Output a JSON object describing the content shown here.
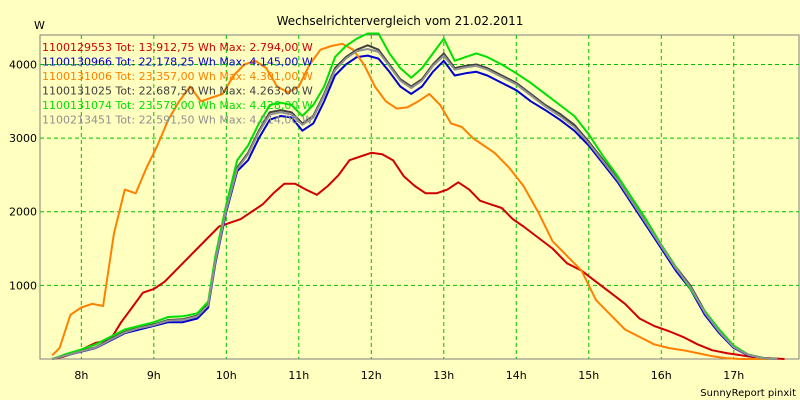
{
  "chart_data": {
    "type": "line",
    "title": "Wechselrichtervergleich vom 21.02.2011",
    "ylabel": "W",
    "xlabel": "",
    "ylim": [
      0,
      4400
    ],
    "xlim": [
      7.43,
      17.9
    ],
    "yticks": [
      1000,
      2000,
      3000,
      4000
    ],
    "xticks": [
      8,
      9,
      10,
      11,
      12,
      13,
      14,
      15,
      16,
      17
    ],
    "xtick_labels": [
      "8h",
      "9h",
      "10h",
      "11h",
      "12h",
      "13h",
      "14h",
      "15h",
      "16h",
      "17h"
    ],
    "legend_position": "top-left",
    "grid": true,
    "footer": "SunnyReport pinxit",
    "series": [
      {
        "name": "1100129553 Tot: 13.912,75 Wh Max: 2.794,00 W",
        "color": "#d00000",
        "x": [
          7.6,
          7.75,
          7.9,
          8.05,
          8.2,
          8.4,
          8.55,
          8.7,
          8.85,
          9.0,
          9.15,
          9.3,
          9.45,
          9.6,
          9.75,
          9.9,
          10.05,
          10.2,
          10.35,
          10.5,
          10.65,
          10.8,
          10.95,
          11.1,
          11.25,
          11.4,
          11.55,
          11.7,
          11.85,
          12.0,
          12.15,
          12.3,
          12.45,
          12.6,
          12.75,
          12.9,
          13.05,
          13.2,
          13.35,
          13.5,
          13.65,
          13.8,
          13.95,
          14.1,
          14.3,
          14.5,
          14.7,
          14.9,
          15.1,
          15.3,
          15.5,
          15.7,
          15.9,
          16.1,
          16.3,
          16.5,
          16.7,
          16.9,
          17.1,
          17.3,
          17.5,
          17.7
        ],
        "y": [
          0,
          30,
          80,
          150,
          220,
          260,
          500,
          700,
          900,
          950,
          1050,
          1200,
          1350,
          1500,
          1650,
          1800,
          1850,
          1900,
          2000,
          2100,
          2250,
          2380,
          2380,
          2300,
          2230,
          2350,
          2500,
          2700,
          2750,
          2800,
          2780,
          2700,
          2480,
          2350,
          2250,
          2250,
          2300,
          2400,
          2300,
          2150,
          2100,
          2050,
          1900,
          1800,
          1650,
          1500,
          1300,
          1200,
          1050,
          900,
          750,
          550,
          450,
          380,
          300,
          200,
          120,
          80,
          50,
          20,
          10,
          0
        ]
      },
      {
        "name": "1100130966 Tot: 22.178,25 Wh Max: 4.145,00 W",
        "color": "#0000d0",
        "x": [
          7.6,
          7.8,
          8.0,
          8.2,
          8.4,
          8.6,
          8.8,
          9.0,
          9.2,
          9.4,
          9.6,
          9.75,
          9.85,
          10.0,
          10.15,
          10.3,
          10.45,
          10.6,
          10.75,
          10.9,
          11.05,
          11.2,
          11.35,
          11.5,
          11.65,
          11.8,
          11.95,
          12.1,
          12.25,
          12.4,
          12.55,
          12.7,
          12.85,
          13.0,
          13.15,
          13.3,
          13.45,
          13.6,
          13.8,
          14.0,
          14.2,
          14.4,
          14.6,
          14.8,
          15.0,
          15.2,
          15.4,
          15.6,
          15.8,
          16.0,
          16.2,
          16.4,
          16.6,
          16.8,
          17.0,
          17.2,
          17.4,
          17.6
        ],
        "y": [
          0,
          50,
          100,
          150,
          250,
          350,
          400,
          450,
          500,
          500,
          550,
          700,
          1300,
          2000,
          2550,
          2700,
          3000,
          3250,
          3300,
          3280,
          3100,
          3200,
          3500,
          3850,
          4000,
          4100,
          4120,
          4080,
          3900,
          3700,
          3600,
          3700,
          3900,
          4050,
          3850,
          3880,
          3900,
          3850,
          3750,
          3650,
          3500,
          3380,
          3250,
          3100,
          2900,
          2650,
          2400,
          2100,
          1800,
          1500,
          1200,
          950,
          600,
          350,
          150,
          50,
          10,
          0
        ]
      },
      {
        "name": "1100131006 Tot: 23.357,00 Wh Max: 4.301,00 W",
        "color": "#ff8000",
        "x": [
          7.6,
          7.7,
          7.85,
          8.0,
          8.15,
          8.3,
          8.45,
          8.6,
          8.75,
          8.9,
          9.05,
          9.2,
          9.35,
          9.5,
          9.65,
          9.8,
          9.95,
          10.1,
          10.25,
          10.4,
          10.55,
          10.7,
          10.85,
          11.0,
          11.15,
          11.3,
          11.45,
          11.6,
          11.75,
          11.9,
          12.05,
          12.2,
          12.35,
          12.5,
          12.65,
          12.8,
          12.95,
          13.1,
          13.25,
          13.4,
          13.55,
          13.7,
          13.9,
          14.1,
          14.3,
          14.5,
          14.7,
          14.9,
          15.1,
          15.3,
          15.5,
          15.7,
          15.9,
          16.1,
          16.3,
          16.5,
          16.7,
          16.9,
          17.1,
          17.3,
          17.5
        ],
        "y": [
          50,
          150,
          600,
          700,
          750,
          720,
          1700,
          2300,
          2250,
          2600,
          2900,
          3250,
          3500,
          3700,
          3500,
          3550,
          3600,
          3850,
          4000,
          4050,
          3950,
          3700,
          3620,
          3700,
          4000,
          4200,
          4250,
          4280,
          4200,
          4000,
          3700,
          3500,
          3400,
          3420,
          3500,
          3600,
          3450,
          3200,
          3150,
          3000,
          2900,
          2800,
          2600,
          2350,
          2000,
          1600,
          1400,
          1200,
          800,
          600,
          400,
          300,
          200,
          150,
          120,
          80,
          40,
          10,
          0,
          0,
          0
        ]
      },
      {
        "name": "1100131025 Tot: 22.687,50 Wh Max: 4.263,00 W",
        "color": "#404040",
        "x": [
          7.6,
          7.8,
          8.0,
          8.2,
          8.4,
          8.6,
          8.8,
          9.0,
          9.2,
          9.4,
          9.6,
          9.75,
          9.85,
          10.0,
          10.15,
          10.3,
          10.45,
          10.6,
          10.75,
          10.9,
          11.05,
          11.2,
          11.35,
          11.5,
          11.65,
          11.8,
          11.95,
          12.1,
          12.25,
          12.4,
          12.55,
          12.7,
          12.85,
          13.0,
          13.15,
          13.3,
          13.45,
          13.6,
          13.8,
          14.0,
          14.2,
          14.4,
          14.6,
          14.8,
          15.0,
          15.2,
          15.4,
          15.6,
          15.8,
          16.0,
          16.2,
          16.4,
          16.6,
          16.8,
          17.0,
          17.2,
          17.4,
          17.6
        ],
        "y": [
          0,
          55,
          110,
          160,
          270,
          370,
          430,
          470,
          530,
          540,
          590,
          750,
          1350,
          2050,
          2600,
          2800,
          3100,
          3350,
          3380,
          3350,
          3200,
          3300,
          3600,
          3950,
          4100,
          4200,
          4260,
          4200,
          4000,
          3800,
          3700,
          3800,
          4000,
          4150,
          3950,
          3980,
          4000,
          3950,
          3850,
          3750,
          3600,
          3450,
          3330,
          3180,
          2950,
          2700,
          2450,
          2150,
          1850,
          1550,
          1250,
          1000,
          650,
          380,
          170,
          60,
          15,
          0
        ]
      },
      {
        "name": "1100131074 Tot: 23.578,00 Wh Max: 4.428,00 W",
        "color": "#00e000",
        "x": [
          7.6,
          7.8,
          8.0,
          8.2,
          8.4,
          8.6,
          8.8,
          9.0,
          9.2,
          9.4,
          9.6,
          9.75,
          9.85,
          10.0,
          10.15,
          10.3,
          10.45,
          10.6,
          10.75,
          10.9,
          11.05,
          11.2,
          11.35,
          11.5,
          11.65,
          11.8,
          11.95,
          12.1,
          12.25,
          12.4,
          12.55,
          12.7,
          12.85,
          13.0,
          13.15,
          13.3,
          13.45,
          13.6,
          13.8,
          14.0,
          14.2,
          14.4,
          14.6,
          14.8,
          15.0,
          15.2,
          15.4,
          15.6,
          15.8,
          16.0,
          16.2,
          16.4,
          16.6,
          16.8,
          17.0,
          17.2,
          17.4,
          17.6
        ],
        "y": [
          0,
          70,
          130,
          200,
          300,
          400,
          450,
          500,
          570,
          580,
          620,
          780,
          1400,
          2100,
          2700,
          2900,
          3200,
          3450,
          3480,
          3450,
          3300,
          3450,
          3700,
          4100,
          4250,
          4350,
          4420,
          4420,
          4150,
          3950,
          3820,
          3950,
          4150,
          4350,
          4050,
          4100,
          4150,
          4100,
          4000,
          3880,
          3750,
          3600,
          3450,
          3300,
          3050,
          2750,
          2480,
          2180,
          1880,
          1550,
          1250,
          950,
          650,
          400,
          180,
          60,
          10,
          0
        ]
      },
      {
        "name": "1100213451 Tot: 22.591,50 Wh Max: 4.214,00 W",
        "color": "#909090",
        "x": [
          7.6,
          7.8,
          8.0,
          8.2,
          8.4,
          8.6,
          8.8,
          9.0,
          9.2,
          9.4,
          9.6,
          9.75,
          9.85,
          10.0,
          10.15,
          10.3,
          10.45,
          10.6,
          10.75,
          10.9,
          11.05,
          11.2,
          11.35,
          11.5,
          11.65,
          11.8,
          11.95,
          12.1,
          12.25,
          12.4,
          12.55,
          12.7,
          12.85,
          13.0,
          13.15,
          13.3,
          13.45,
          13.6,
          13.8,
          14.0,
          14.2,
          14.4,
          14.6,
          14.8,
          15.0,
          15.2,
          15.4,
          15.6,
          15.8,
          16.0,
          16.2,
          16.4,
          16.6,
          16.8,
          17.0,
          17.2,
          17.4,
          17.6
        ],
        "y": [
          0,
          52,
          105,
          155,
          260,
          360,
          420,
          460,
          520,
          530,
          580,
          730,
          1330,
          2030,
          2580,
          2780,
          3080,
          3320,
          3350,
          3320,
          3180,
          3280,
          3580,
          3920,
          4080,
          4180,
          4210,
          4170,
          3980,
          3780,
          3680,
          3780,
          3980,
          4120,
          3930,
          3960,
          3980,
          3930,
          3830,
          3730,
          3580,
          3430,
          3300,
          3150,
          2930,
          2680,
          2430,
          2130,
          1830,
          1530,
          1230,
          980,
          630,
          370,
          160,
          55,
          12,
          0
        ]
      }
    ]
  }
}
